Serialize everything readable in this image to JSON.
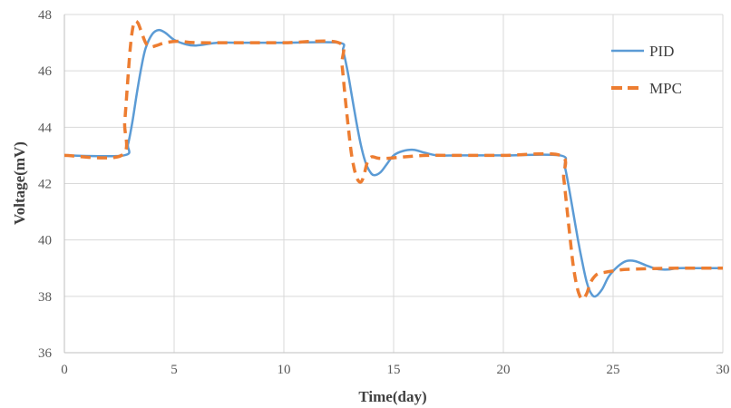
{
  "chart_data": {
    "type": "line",
    "title": "",
    "xlabel": "Time(day)",
    "ylabel": "Voltage(mV)",
    "xlim": [
      0,
      30
    ],
    "ylim": [
      36,
      48
    ],
    "xticks": [
      0,
      5,
      10,
      15,
      20,
      25,
      30
    ],
    "yticks": [
      36,
      38,
      40,
      42,
      44,
      46,
      48
    ],
    "grid": true,
    "legend": "right",
    "series": [
      {
        "name": "PID",
        "color": "#5b9bd5",
        "style": "solid",
        "x": [
          0,
          2.7,
          2.9,
          3.1,
          3.3,
          3.5,
          3.7,
          4.0,
          4.3,
          4.6,
          5.0,
          5.5,
          6.0,
          7.0,
          8.0,
          10.0,
          12.5,
          12.7,
          12.9,
          13.1,
          13.3,
          13.5,
          13.7,
          13.9,
          14.1,
          14.4,
          14.7,
          15.0,
          15.4,
          15.9,
          16.4,
          17.0,
          18.0,
          20.0,
          22.6,
          22.8,
          23.0,
          23.2,
          23.4,
          23.6,
          23.8,
          24.0,
          24.2,
          24.5,
          24.8,
          25.2,
          25.6,
          26.0,
          26.5,
          27.0,
          27.5,
          28.0,
          29.0,
          30.0
        ],
        "y": [
          43.0,
          43.0,
          43.4,
          44.2,
          45.2,
          46.1,
          46.8,
          47.3,
          47.45,
          47.35,
          47.1,
          46.95,
          46.9,
          47.0,
          47.0,
          47.0,
          47.0,
          46.7,
          46.0,
          45.1,
          44.2,
          43.4,
          42.8,
          42.45,
          42.3,
          42.4,
          42.7,
          43.0,
          43.15,
          43.2,
          43.1,
          43.0,
          43.0,
          43.0,
          43.0,
          42.6,
          41.8,
          40.9,
          40.0,
          39.2,
          38.5,
          38.1,
          38.0,
          38.25,
          38.7,
          39.05,
          39.25,
          39.25,
          39.1,
          38.97,
          38.95,
          39.0,
          39.0,
          39.0
        ]
      },
      {
        "name": "MPC",
        "color": "#ed7d31",
        "style": "dashed",
        "x": [
          0,
          2.6,
          2.75,
          2.9,
          3.0,
          3.1,
          3.2,
          3.35,
          3.5,
          3.7,
          3.9,
          4.2,
          4.6,
          5.2,
          6.0,
          8.0,
          10.0,
          12.5,
          12.65,
          12.8,
          12.95,
          13.1,
          13.3,
          13.5,
          13.65,
          13.8,
          14.0,
          14.3,
          14.8,
          15.5,
          16.5,
          18.0,
          20.0,
          22.6,
          22.75,
          22.9,
          23.05,
          23.2,
          23.4,
          23.6,
          23.8,
          23.95,
          24.1,
          24.3,
          24.6,
          25.0,
          25.5,
          26.5,
          28.0,
          30.0
        ],
        "y": [
          43.0,
          43.0,
          44.2,
          45.8,
          46.8,
          47.45,
          47.75,
          47.7,
          47.4,
          47.0,
          46.85,
          46.9,
          47.0,
          47.05,
          47.0,
          47.0,
          47.0,
          47.0,
          46.2,
          45.0,
          43.9,
          42.95,
          42.25,
          42.05,
          42.3,
          42.75,
          42.95,
          42.9,
          42.9,
          42.95,
          43.0,
          43.0,
          43.0,
          43.0,
          42.2,
          41.1,
          40.0,
          39.0,
          38.2,
          37.9,
          38.1,
          38.45,
          38.65,
          38.8,
          38.85,
          38.9,
          38.95,
          38.98,
          39.0,
          39.0
        ]
      }
    ]
  }
}
